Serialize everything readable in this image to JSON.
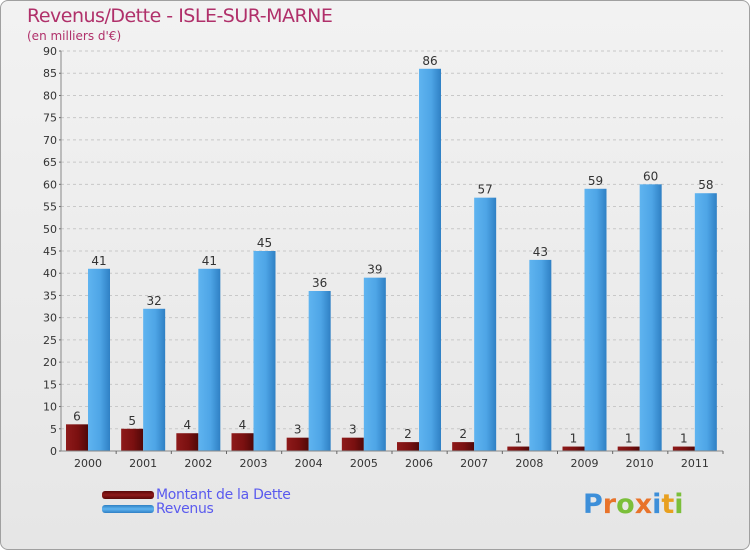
{
  "header": {
    "title": "Revenus/Dette - ISLE-SUR-MARNE",
    "subtitle": "(en milliers d'€)"
  },
  "chart_data": {
    "type": "bar",
    "categories": [
      "2000",
      "2001",
      "2002",
      "2003",
      "2004",
      "2005",
      "2006",
      "2007",
      "2008",
      "2009",
      "2010",
      "2011"
    ],
    "series": [
      {
        "name": "Montant de la Dette",
        "values": [
          6,
          5,
          4,
          4,
          3,
          3,
          2,
          2,
          1,
          1,
          1,
          1
        ],
        "color": "#7a1010"
      },
      {
        "name": "Revenus",
        "values": [
          41,
          32,
          41,
          45,
          36,
          39,
          86,
          57,
          43,
          59,
          60,
          58
        ],
        "color": "#4ea5e6"
      }
    ],
    "ylim": [
      0,
      90
    ],
    "yticks": [
      "0",
      "5",
      "10",
      "15",
      "20",
      "25",
      "30",
      "35",
      "40",
      "45",
      "50",
      "55",
      "60",
      "65",
      "70",
      "75",
      "80",
      "85",
      "90"
    ],
    "grid": true,
    "legend_position": "bottom-left"
  },
  "legend": {
    "items": [
      {
        "label": "Montant de la Dette",
        "color": "#7a1010"
      },
      {
        "label": "Revenus",
        "color": "#4ea5e6"
      }
    ]
  },
  "brand": {
    "letters": [
      "P",
      "r",
      "o",
      "x",
      "i",
      "t",
      "i"
    ],
    "colors": [
      "#3d8fd9",
      "#e8732a",
      "#7bbf3a",
      "#e8732a",
      "#3d8fd9",
      "#e8a020",
      "#7bbf3a"
    ]
  }
}
